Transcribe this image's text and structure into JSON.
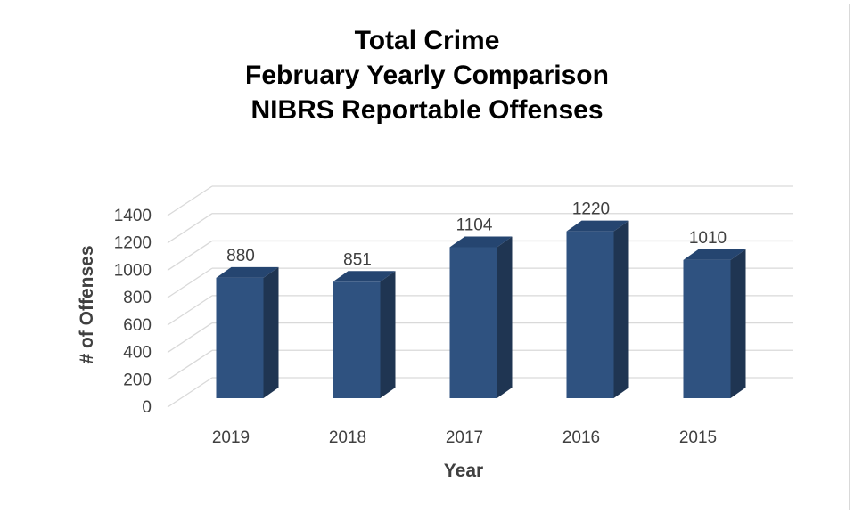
{
  "chart_data": {
    "type": "bar",
    "title_lines": [
      "Total Crime",
      "February Yearly Comparison",
      "NIBRS Reportable Offenses"
    ],
    "categories": [
      "2019",
      "2018",
      "2017",
      "2016",
      "2015"
    ],
    "series": [
      {
        "values": [
          880,
          851,
          1104,
          1220,
          1010
        ]
      }
    ],
    "xlabel": "Year",
    "ylabel": "# of Offenses",
    "ylim": [
      0,
      1400
    ],
    "yticks": [
      "0",
      "200",
      "400",
      "600",
      "800",
      "1000",
      "1200",
      "1400"
    ],
    "data_labels": [
      "880",
      "851",
      "1104",
      "1220",
      "1010"
    ],
    "grid": true,
    "legend": "none",
    "bar_3d": true,
    "colors": {
      "bar_front": "#2f5280",
      "bar_side": "#1f3552",
      "bar_top": "#254570",
      "grid": "#d9d9d9"
    }
  }
}
